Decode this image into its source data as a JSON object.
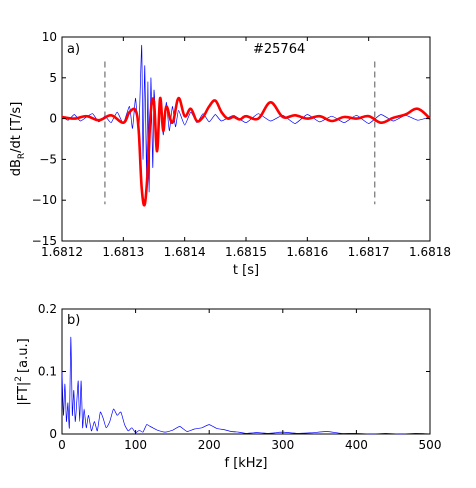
{
  "figure": {
    "panel_a": {
      "label": "a)",
      "shot": "#25764",
      "xlabel": "t [s]",
      "ylabel_pre": "dB",
      "ylabel_sub": "R",
      "ylabel_post": "/dt [T/s]",
      "xticks": [
        "1.6812",
        "1.6813",
        "1.6814",
        "1.6815",
        "1.6816",
        "1.6817",
        "1.6818"
      ],
      "yticks": [
        "10",
        "5",
        "0",
        "−5",
        "−10",
        "−15"
      ]
    },
    "panel_b": {
      "label": "b)",
      "xlabel": "f [kHz]",
      "ylabel_pre": "|FT|",
      "ylabel_sup": "2",
      "ylabel_post": "[a.u.]",
      "xticks": [
        "0",
        "100",
        "200",
        "300",
        "400",
        "500"
      ],
      "yticks": [
        "0.2",
        "0.1",
        "0"
      ]
    }
  },
  "chart_data": [
    {
      "type": "line",
      "panel": "a",
      "xlim": [
        1.6812,
        1.6818
      ],
      "ylim": [
        -15,
        10
      ],
      "grid": false,
      "markers": {
        "vlines": [
          1.68127,
          1.68171
        ],
        "style": "dashed",
        "color": "#555555"
      },
      "series": [
        {
          "color": "#0000ff",
          "width": 0.7,
          "x": [
            1.6812,
            1.68121,
            1.68122,
            1.68123,
            1.68124,
            1.68125,
            1.68126,
            1.68127,
            1.68128,
            1.68129,
            1.6813,
            1.68131,
            1.681315,
            1.68132,
            1.681325,
            1.68133,
            1.681332,
            1.681335,
            1.681338,
            1.68134,
            1.681342,
            1.681345,
            1.681348,
            1.68135,
            1.681355,
            1.68136,
            1.681365,
            1.68137,
            1.681375,
            1.68138,
            1.681385,
            1.68139,
            1.6814,
            1.68141,
            1.68142,
            1.68143,
            1.68144,
            1.68145,
            1.68146,
            1.68148,
            1.6815,
            1.68152,
            1.68154,
            1.68156,
            1.68158,
            1.6816,
            1.68162,
            1.68164,
            1.68166,
            1.68168,
            1.6817,
            1.68172,
            1.68174,
            1.68176,
            1.68178,
            1.6818
          ],
          "y": [
            0.3,
            -0.2,
            0.5,
            -0.3,
            0.2,
            0.6,
            -0.4,
            0.3,
            -0.5,
            0.8,
            -0.6,
            1.5,
            -1.2,
            2.5,
            -2.0,
            9.0,
            -5.0,
            6.5,
            -7.5,
            4.5,
            -9.0,
            5.0,
            -6.0,
            3.5,
            -3.0,
            2.5,
            -2.0,
            2.0,
            -1.5,
            1.5,
            -1.0,
            1.0,
            -0.8,
            0.8,
            -0.5,
            0.6,
            -0.4,
            0.5,
            -0.3,
            0.4,
            -0.5,
            0.6,
            -0.3,
            0.4,
            -0.6,
            0.5,
            -0.4,
            0.3,
            -0.5,
            0.4,
            -0.6,
            0.5,
            -0.3,
            0.4,
            -0.2,
            0.2
          ]
        },
        {
          "color": "#ff0000",
          "width": 2.6,
          "x": [
            1.6812,
            1.68122,
            1.68124,
            1.68126,
            1.68128,
            1.6813,
            1.68131,
            1.68132,
            1.681325,
            1.68133,
            1.681335,
            1.68134,
            1.681345,
            1.68135,
            1.681355,
            1.68136,
            1.681365,
            1.68137,
            1.68138,
            1.68139,
            1.6814,
            1.68141,
            1.68142,
            1.68143,
            1.68144,
            1.68145,
            1.68146,
            1.68147,
            1.68148,
            1.68149,
            1.6815,
            1.68152,
            1.68154,
            1.68156,
            1.68158,
            1.6816,
            1.68162,
            1.68164,
            1.68166,
            1.68168,
            1.6817,
            1.68172,
            1.68174,
            1.68176,
            1.68178,
            1.6818
          ],
          "y": [
            0.2,
            0.0,
            0.3,
            -0.2,
            0.4,
            -0.5,
            0.8,
            1.0,
            -1.5,
            -8.5,
            -10.5,
            -6.0,
            1.0,
            2.0,
            -4.0,
            2.5,
            -1.5,
            1.5,
            -0.5,
            2.5,
            0.3,
            1.2,
            -0.3,
            0.2,
            1.5,
            2.2,
            0.8,
            0.0,
            0.2,
            -0.1,
            0.3,
            0.0,
            2.0,
            0.2,
            0.4,
            0.0,
            0.3,
            -0.3,
            0.2,
            0.0,
            0.3,
            -0.5,
            0.1,
            0.5,
            1.2,
            0.0
          ]
        }
      ]
    },
    {
      "type": "line",
      "panel": "b",
      "xlim": [
        0,
        500
      ],
      "ylim": [
        0,
        0.2
      ],
      "grid": false,
      "series": [
        {
          "color": "#0000ff",
          "width": 0.7,
          "x": [
            0,
            2,
            4,
            6,
            8,
            10,
            12,
            14,
            16,
            18,
            20,
            22,
            24,
            26,
            28,
            30,
            33,
            36,
            40,
            44,
            48,
            52,
            56,
            60,
            65,
            70,
            75,
            80,
            85,
            90,
            95,
            100,
            105,
            110,
            115,
            120,
            130,
            140,
            150,
            160,
            170,
            180,
            190,
            200,
            210,
            220,
            230,
            240,
            250,
            260,
            270,
            280,
            290,
            300,
            320,
            340,
            360,
            380,
            400,
            420,
            440,
            460,
            480,
            500
          ],
          "y": [
            0.1,
            0.03,
            0.08,
            0.02,
            0.05,
            0.01,
            0.155,
            0.03,
            0.07,
            0.02,
            0.05,
            0.085,
            0.02,
            0.085,
            0.01,
            0.04,
            0.01,
            0.03,
            0.005,
            0.02,
            0.005,
            0.035,
            0.025,
            0.01,
            0.02,
            0.04,
            0.03,
            0.035,
            0.015,
            0.005,
            0.01,
            0.002,
            0.006,
            0.003,
            0.015,
            0.012,
            0.006,
            0.003,
            0.006,
            0.012,
            0.004,
            0.008,
            0.01,
            0.015,
            0.009,
            0.007,
            0.004,
            0.003,
            0.001,
            0.002,
            0.002,
            0.001,
            0.002,
            0.003,
            0.001,
            0.002,
            0.004,
            0.001,
            0.001,
            0.0,
            0.001,
            0.0,
            0.001,
            0.0
          ]
        }
      ]
    }
  ]
}
